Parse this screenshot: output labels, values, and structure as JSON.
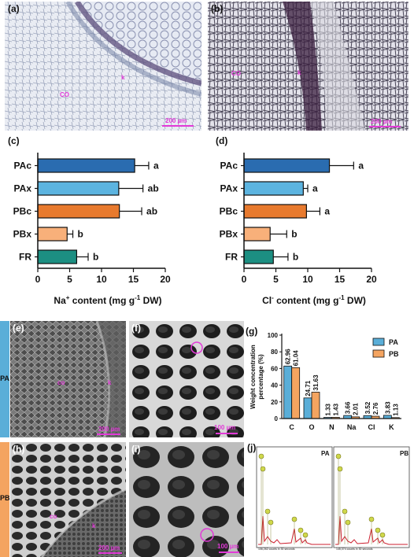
{
  "panels": {
    "a": "(a)",
    "b": "(b)",
    "c": "(c)",
    "d": "(d)",
    "e": "(e)",
    "f": "(f)",
    "g": "(g)",
    "h": "(h)",
    "i": "(i)",
    "j": "(j)"
  },
  "micrographs": {
    "a": {
      "label_co": "CO",
      "label_k": "k",
      "scale": "200 µm"
    },
    "b": {
      "label_co": "CO",
      "label_k": "k",
      "scale": "200 µm"
    },
    "e": {
      "label_co": "co",
      "label_k": "k",
      "scale": "200 µm"
    },
    "f": {
      "scale": "100 µm"
    },
    "h": {
      "label_co": "co",
      "label_k": "k",
      "scale": "200 µm"
    },
    "i": {
      "scale": "100 µm"
    }
  },
  "side_bands": {
    "pa": {
      "text": "PA",
      "color": "#5aaed8"
    },
    "pb": {
      "text": "PB",
      "color": "#f4a460"
    }
  },
  "colors": {
    "PAc": "#2a6cb0",
    "PAx": "#5cb4e0",
    "PBc": "#e87a2e",
    "PBx": "#f8b07a",
    "FR": "#1c8f82",
    "PA": "#5aaed8",
    "PB": "#f4a460",
    "eds_line": "#cc1f2f"
  },
  "chart_data": [
    {
      "id": "c",
      "type": "bar",
      "orientation": "horizontal",
      "categories": [
        "PAc",
        "PAx",
        "PBc",
        "PBx",
        "FR"
      ],
      "values": [
        15.2,
        12.7,
        12.8,
        4.6,
        6.1
      ],
      "errors": [
        2.2,
        3.8,
        3.5,
        0.9,
        1.8
      ],
      "letters": [
        "a",
        "ab",
        "ab",
        "b",
        "b"
      ],
      "xlabel_main": "Na",
      "xlabel_sup": "+",
      "xlabel_rest": " content (mg g",
      "xlabel_sup2": "-1",
      "xlabel_end": " DW)",
      "xlim": [
        0,
        20
      ],
      "xticks": [
        "0",
        "5",
        "10",
        "15",
        "20"
      ]
    },
    {
      "id": "d",
      "type": "bar",
      "orientation": "horizontal",
      "categories": [
        "PAc",
        "PAx",
        "PBc",
        "PBx",
        "FR"
      ],
      "values": [
        13.4,
        9.3,
        9.8,
        4.1,
        4.6
      ],
      "errors": [
        3.8,
        0.7,
        2.1,
        2.6,
        2.3
      ],
      "letters": [
        "a",
        "a",
        "a",
        "b",
        "b"
      ],
      "xlabel_main": "Cl",
      "xlabel_sup": "-",
      "xlabel_rest": " content (mg g",
      "xlabel_sup2": "-1",
      "xlabel_end": " DW)",
      "xlim": [
        0,
        20
      ],
      "xticks": [
        "0",
        "5",
        "10",
        "15",
        "20"
      ]
    },
    {
      "id": "g",
      "type": "bar",
      "orientation": "vertical",
      "categories": [
        "C",
        "O",
        "N",
        "Na",
        "Cl",
        "K"
      ],
      "series": [
        {
          "name": "PA",
          "values": [
            62.96,
            24.71,
            1.33,
            3.66,
            3.52,
            3.83
          ],
          "labels": [
            "62.96",
            "24.71",
            "1.33",
            "3.66",
            "3.52",
            "3.83"
          ]
        },
        {
          "name": "PB",
          "values": [
            61.04,
            31.63,
            1.43,
            2.01,
            2.76,
            1.13
          ],
          "labels": [
            "61.04",
            "31.63",
            "1.43",
            "2.01",
            "2.76",
            "1.13"
          ]
        }
      ],
      "ylabel_line1": "Weight concentration",
      "ylabel_line2": "percentage (%)",
      "ylim": [
        0,
        100
      ],
      "yticks": [
        "0",
        "20",
        "40",
        "60",
        "80",
        "100"
      ],
      "legend": "top-right"
    }
  ],
  "eds": {
    "pa": {
      "label": "PA",
      "footer": "106,262 counts in 30 seconds"
    },
    "pb": {
      "label": "PB",
      "footer": "145,374 counts in 30 seconds"
    }
  }
}
